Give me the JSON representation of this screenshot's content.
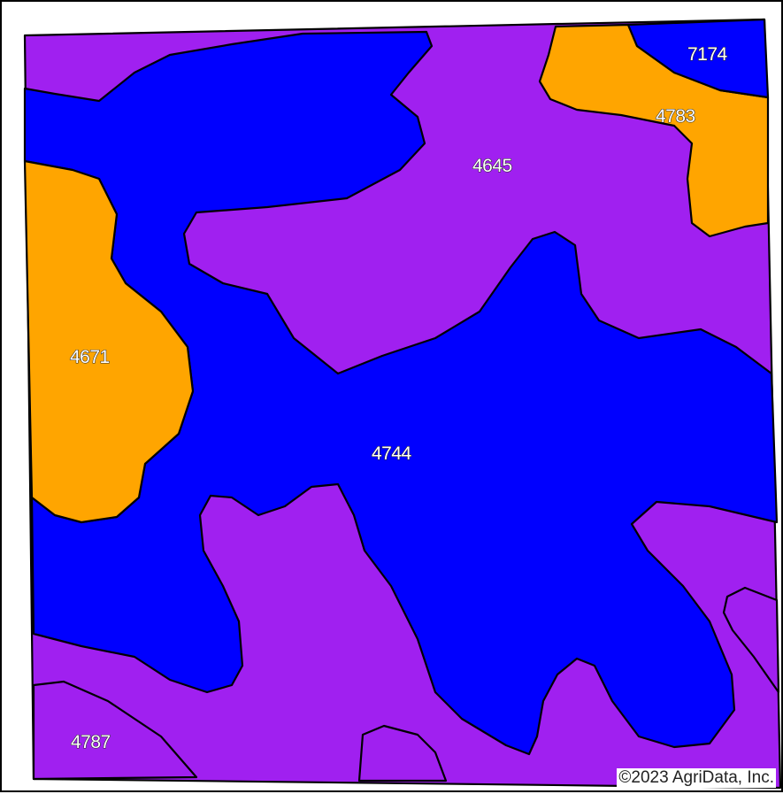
{
  "colors": {
    "purple": "#A020F0",
    "blue": "#0000FF",
    "orange": "#FFA500",
    "outline": "#000000"
  },
  "soil_units": [
    {
      "label": "4645",
      "color": "#A020F0"
    },
    {
      "label": "4744",
      "color": "#0000FF"
    },
    {
      "label": "4671",
      "color": "#FFA500"
    },
    {
      "label": "4783",
      "color": "#FFA500"
    },
    {
      "label": "7174",
      "color": "#0000FF"
    },
    {
      "label": "4787",
      "color": "#A020F0"
    }
  ],
  "copyright": "©2023 AgriData, Inc."
}
